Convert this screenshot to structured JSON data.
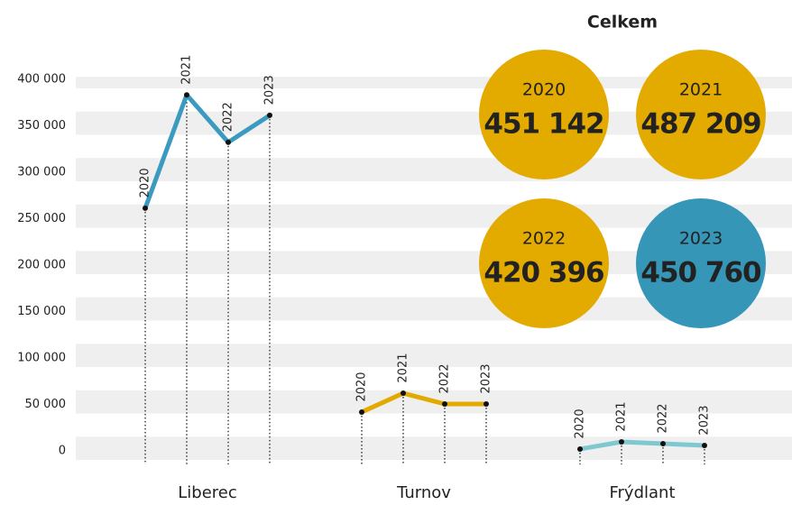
{
  "chart_data": {
    "type": "line",
    "yticks": [
      {
        "value": 0,
        "label": "0"
      },
      {
        "value": 50000,
        "label": "50 000"
      },
      {
        "value": 100000,
        "label": "100 000"
      },
      {
        "value": 150000,
        "label": "150 000"
      },
      {
        "value": 200000,
        "label": "200 000"
      },
      {
        "value": 250000,
        "label": "250 000"
      },
      {
        "value": 300000,
        "label": "300 000"
      },
      {
        "value": 350000,
        "label": "350 000"
      },
      {
        "value": 400000,
        "label": "400 000"
      }
    ],
    "ylim": [
      0,
      425000
    ],
    "series": [
      {
        "name": "Liberec",
        "color": "#3a9abf",
        "x": [
          "2020",
          "2021",
          "2022",
          "2023"
        ],
        "values": [
          271000,
          393000,
          342000,
          371000
        ]
      },
      {
        "name": "Turnov",
        "color": "#e2aa00",
        "x": [
          "2020",
          "2021",
          "2022",
          "2023"
        ],
        "values": [
          51500,
          71800,
          60200,
          60200
        ]
      },
      {
        "name": "Frýdlant",
        "color": "#80c8cf",
        "x": [
          "2020",
          "2021",
          "2022",
          "2023"
        ],
        "values": [
          11700,
          19400,
          17500,
          15500
        ]
      }
    ]
  },
  "totals": {
    "title": "Celkem",
    "categories": [
      "2020",
      "2021",
      "2022",
      "2023"
    ],
    "values": [
      451142,
      487209,
      420396,
      450760
    ],
    "value_labels": [
      "451 142",
      "487 209",
      "420 396",
      "450 760"
    ],
    "colors": [
      "#e3ab00",
      "#e3ab00",
      "#e3ab00",
      "#3596b8"
    ]
  }
}
